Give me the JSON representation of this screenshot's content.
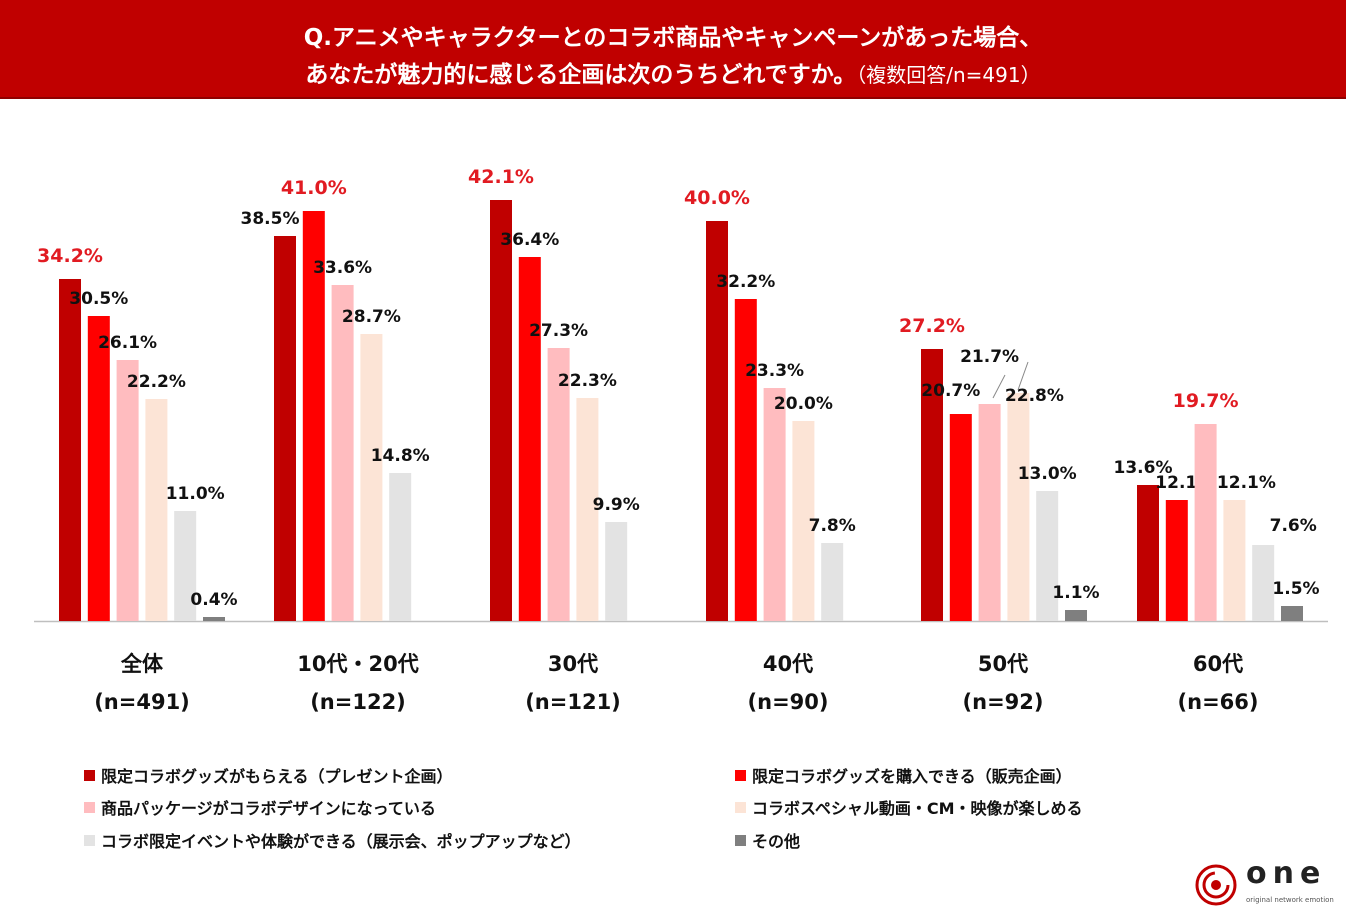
{
  "title": {
    "line1": "Q.アニメやキャラクターとのコラボ商品やキャンペーンがあった場合、",
    "line2": "あなたが魅力的に感じる企画は次のうちどれですか。",
    "note": "（複数回答/n=491）"
  },
  "chart_data": {
    "type": "bar",
    "title": "Q.アニメやキャラクターとのコラボ商品やキャンペーンがあった場合、あなたが魅力的に感じる企画は次のうちどれですか。（複数回答/n=491）",
    "categories": [
      "全体",
      "10代・20代",
      "30代",
      "40代",
      "50代",
      "60代"
    ],
    "category_n": [
      "(n=491)",
      "(n=122)",
      "(n=121)",
      "(n=90)",
      "(n=92)",
      "(n=66)"
    ],
    "ylim": [
      0,
      45
    ],
    "unit": "%",
    "series": [
      {
        "name": "限定コラボグッズがもらえる（プレゼント企画）",
        "color": "#c00000",
        "values": [
          34.2,
          38.5,
          42.1,
          40.0,
          27.2,
          13.6
        ],
        "labels": [
          "34.2%",
          "38.5%",
          "42.1%",
          "40.0%",
          "27.2%",
          "13.6%"
        ]
      },
      {
        "name": "限定コラボグッズを購入できる（販売企画）",
        "color": "#ff0000",
        "values": [
          30.5,
          41.0,
          36.4,
          32.2,
          20.7,
          12.1
        ],
        "labels": [
          "30.5%",
          "41.0%",
          "36.4%",
          "32.2%",
          "20.7%",
          "12.1%"
        ]
      },
      {
        "name": "商品パッケージがコラボデザインになっている",
        "color": "#ffbcbf",
        "values": [
          26.1,
          33.6,
          27.3,
          23.3,
          21.7,
          19.7
        ],
        "labels": [
          "26.1%",
          "33.6%",
          "27.3%",
          "23.3%",
          "21.7%",
          "19.7%"
        ]
      },
      {
        "name": "コラボスペシャル動画・CM・映像が楽しめる",
        "color": "#fce4d6",
        "values": [
          22.2,
          28.7,
          22.3,
          20.0,
          22.8,
          12.1
        ],
        "labels": [
          "22.2%",
          "28.7%",
          "22.3%",
          "20.0%",
          "22.8%",
          "12.1%"
        ]
      },
      {
        "name": "コラボ限定イベントや体験ができる（展示会、ポップアップなど）",
        "color": "#e3e3e3",
        "values": [
          11.0,
          14.8,
          9.9,
          7.8,
          13.0,
          7.6
        ],
        "labels": [
          "11.0%",
          "14.8%",
          "9.9%",
          "7.8%",
          "13.0%",
          "7.6%"
        ]
      },
      {
        "name": "その他",
        "color": "#7f7f7f",
        "values": [
          0.4,
          0.0,
          0.0,
          0.0,
          1.1,
          1.5
        ],
        "labels": [
          "0.4%",
          "",
          "",
          "",
          "1.1%",
          "1.5%"
        ]
      }
    ],
    "highlight_color": "#e11b22"
  },
  "logo": {
    "word": "one",
    "tagline": "original network emotion"
  }
}
